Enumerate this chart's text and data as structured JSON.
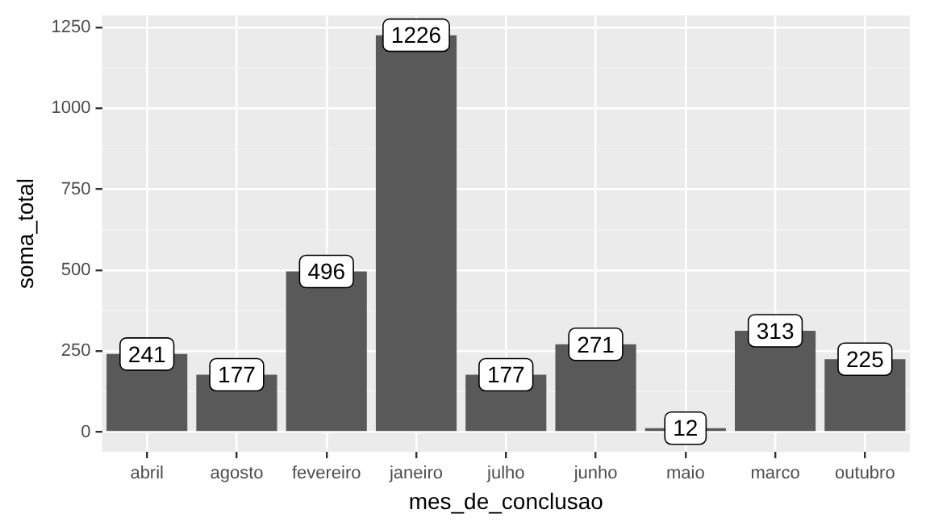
{
  "chart_data": {
    "type": "bar",
    "xlabel": "mes_de_conclusao",
    "ylabel": "soma_total",
    "categories": [
      "abril",
      "agosto",
      "fevereiro",
      "janeiro",
      "julho",
      "junho",
      "maio",
      "marco",
      "outubro"
    ],
    "values": [
      241,
      177,
      496,
      1226,
      177,
      271,
      12,
      313,
      225
    ],
    "color": "#595959",
    "ylim": [
      -61,
      1287
    ],
    "yticks": [
      0,
      250,
      500,
      750,
      1000,
      1250
    ],
    "grid": true,
    "data_labels": true,
    "legend": false
  }
}
